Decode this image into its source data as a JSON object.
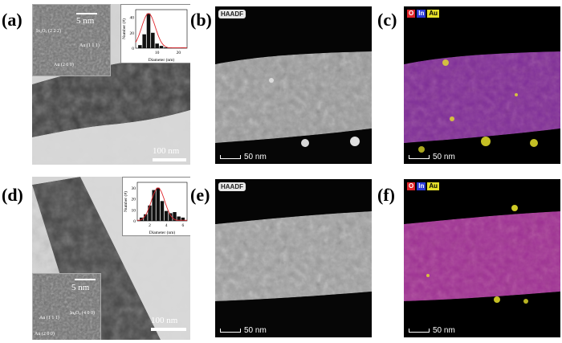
{
  "panels": {
    "a": {
      "label": "(a)",
      "scale_bar": "100 nm",
      "hrtem": {
        "scale_bar": "5 nm",
        "labels": [
          "In₂O₃ (2 2 2)",
          "Au (1 1 1)",
          "Au (2 0 0)"
        ]
      },
      "histogram": {
        "xlabel": "Diameter (nm)",
        "ylabel": "Number (#)",
        "x": [
          2,
          4,
          6,
          8,
          10,
          12,
          14,
          16,
          18,
          20,
          22
        ],
        "values": [
          4,
          18,
          45,
          20,
          6,
          3,
          1,
          1,
          0,
          0,
          1
        ],
        "xticks": [
          "10",
          "20"
        ],
        "yticks": [
          "0",
          "20",
          "40"
        ]
      }
    },
    "b": {
      "label": "(b)",
      "badge": "HAADF",
      "scale_bar": "50 nm"
    },
    "c": {
      "label": "(c)",
      "scale_bar": "50 nm",
      "legend": [
        "O",
        "In",
        "Au"
      ]
    },
    "d": {
      "label": "(d)",
      "scale_bar": "100 nm",
      "hrtem": {
        "scale_bar": "5 nm",
        "labels": [
          "Au (1 1 1)",
          "In₂O₃ (4 0 0)",
          "Au (2 0 0)"
        ]
      },
      "histogram": {
        "xlabel": "Diameter (nm)",
        "ylabel": "Number (#)",
        "x": [
          1.0,
          1.5,
          2.0,
          2.5,
          3.0,
          3.5,
          4.0,
          4.5,
          5.0,
          5.5,
          6.0
        ],
        "values": [
          3,
          6,
          14,
          28,
          30,
          18,
          9,
          7,
          8,
          4,
          3
        ],
        "xticks": [
          "2",
          "4",
          "6"
        ],
        "yticks": [
          "0",
          "10",
          "20",
          "30"
        ]
      }
    },
    "e": {
      "label": "(e)",
      "badge": "HAADF",
      "scale_bar": "50 nm"
    },
    "f": {
      "label": "(f)",
      "scale_bar": "50 nm",
      "legend": [
        "O",
        "In",
        "Au"
      ]
    }
  },
  "colors": {
    "O": "#e0242a",
    "In": "#2b3bd6",
    "Au": "#e6e02a"
  }
}
